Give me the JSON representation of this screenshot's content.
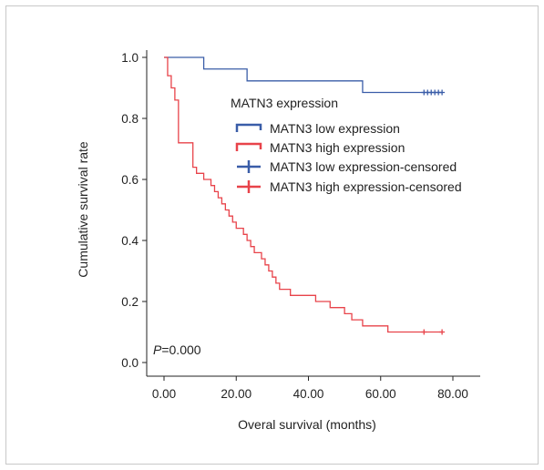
{
  "chart_data": {
    "type": "line",
    "subtype": "kaplan-meier",
    "xlabel": "Overal survival (months)",
    "ylabel": "Cumulative survival rate",
    "xlim": [
      0,
      80
    ],
    "ylim": [
      0,
      1.0
    ],
    "xticks": [
      "0.00",
      "20.00",
      "40.00",
      "60.00",
      "80.00"
    ],
    "yticks": [
      "0.0",
      "0.2",
      "0.4",
      "0.6",
      "0.8",
      "1.0"
    ],
    "grid": false,
    "legend": {
      "title": "MATN3 expression",
      "placement": "top-right",
      "entries": [
        {
          "label": "MATN3 low expression",
          "kind": "step",
          "color": "#3a5da8"
        },
        {
          "label": "MATN3 high expression",
          "kind": "step",
          "color": "#e8434a"
        },
        {
          "label": "MATN3 low expression-censored",
          "kind": "cross",
          "color": "#3a5da8"
        },
        {
          "label": "MATN3 high expression-censored",
          "kind": "cross",
          "color": "#e8434a"
        }
      ]
    },
    "annotation": {
      "p_label": "P",
      "p_value": "=0.000"
    },
    "series": [
      {
        "color": "#3a5da8",
        "steps": [
          [
            0,
            1.0
          ],
          [
            11,
            0.962
          ],
          [
            23,
            0.923
          ],
          [
            55,
            0.885
          ],
          [
            77,
            0.885
          ]
        ],
        "censored": [
          [
            72,
            0.885
          ],
          [
            73,
            0.885
          ],
          [
            74,
            0.885
          ],
          [
            75,
            0.885
          ],
          [
            76,
            0.885
          ],
          [
            77,
            0.885
          ]
        ]
      },
      {
        "color": "#e8434a",
        "steps": [
          [
            0,
            1.0
          ],
          [
            1,
            0.94
          ],
          [
            2,
            0.9
          ],
          [
            3,
            0.86
          ],
          [
            4,
            0.72
          ],
          [
            8,
            0.64
          ],
          [
            9,
            0.62
          ],
          [
            11,
            0.6
          ],
          [
            13,
            0.58
          ],
          [
            14,
            0.56
          ],
          [
            15,
            0.54
          ],
          [
            16,
            0.52
          ],
          [
            17,
            0.5
          ],
          [
            18,
            0.48
          ],
          [
            19,
            0.46
          ],
          [
            20,
            0.44
          ],
          [
            22,
            0.42
          ],
          [
            23,
            0.4
          ],
          [
            24,
            0.38
          ],
          [
            25,
            0.36
          ],
          [
            27,
            0.34
          ],
          [
            28,
            0.32
          ],
          [
            29,
            0.3
          ],
          [
            30,
            0.28
          ],
          [
            31,
            0.26
          ],
          [
            32,
            0.24
          ],
          [
            35,
            0.22
          ],
          [
            42,
            0.2
          ],
          [
            46,
            0.18
          ],
          [
            50,
            0.16
          ],
          [
            52,
            0.14
          ],
          [
            55,
            0.12
          ],
          [
            62,
            0.1
          ],
          [
            77,
            0.1
          ]
        ],
        "censored": [
          [
            72,
            0.1
          ],
          [
            77,
            0.1
          ]
        ]
      }
    ]
  }
}
